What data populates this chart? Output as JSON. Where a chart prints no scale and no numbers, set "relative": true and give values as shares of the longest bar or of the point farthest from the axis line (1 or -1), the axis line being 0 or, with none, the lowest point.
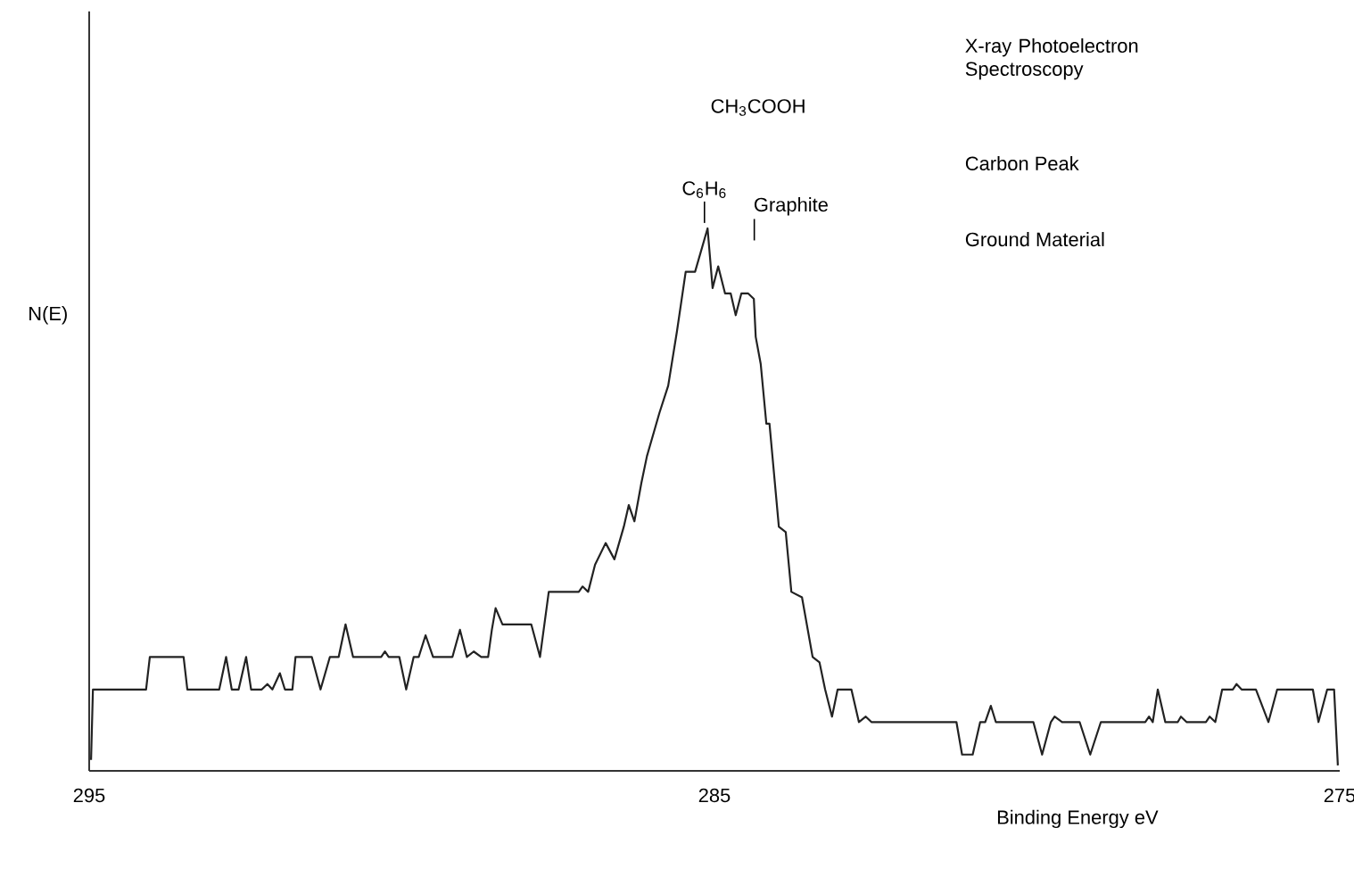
{
  "chart_data": {
    "type": "line",
    "title": "X-ray Photoelectron Spectroscopy",
    "subtitle": "Carbon Peak",
    "xlabel": "Binding Energy  eV",
    "ylabel": "N(E)",
    "relative": true,
    "xlim": [
      295,
      275
    ],
    "xticks": [
      295,
      285,
      275
    ],
    "x": [
      294.97,
      294.94,
      294.09,
      294.03,
      293.49,
      293.43,
      292.92,
      292.81,
      292.72,
      292.61,
      292.49,
      292.41,
      292.24,
      292.15,
      292.07,
      291.95,
      291.87,
      291.75,
      291.7,
      291.44,
      291.3,
      291.15,
      291.01,
      290.9,
      290.78,
      290.33,
      290.27,
      290.21,
      290.04,
      289.93,
      289.81,
      289.73,
      289.62,
      289.5,
      289.19,
      289.07,
      288.96,
      288.85,
      288.73,
      288.62,
      288.56,
      288.5,
      288.39,
      287.93,
      287.79,
      287.65,
      287.17,
      287.11,
      287.02,
      286.91,
      286.74,
      286.6,
      286.45,
      286.37,
      286.28,
      286.17,
      286.08,
      285.88,
      285.74,
      285.6,
      285.46,
      285.31,
      285.11,
      285.03,
      284.94,
      284.83,
      284.74,
      284.66,
      284.57,
      284.46,
      284.37,
      284.34,
      284.26,
      284.17,
      284.12,
      283.97,
      283.86,
      283.77,
      283.6,
      283.43,
      283.32,
      283.23,
      283.12,
      283.03,
      282.81,
      282.69,
      282.58,
      282.49,
      281.13,
      281.04,
      280.87,
      280.75,
      280.67,
      280.58,
      280.5,
      279.9,
      279.76,
      279.62,
      279.56,
      279.44,
      279.16,
      278.99,
      278.82,
      278.11,
      278.05,
      277.99,
      277.91,
      277.79,
      277.59,
      277.54,
      277.45,
      277.14,
      277.08,
      276.99,
      276.88,
      276.71,
      276.65,
      276.57,
      276.34,
      276.14,
      276.0,
      275.43,
      275.34,
      275.2,
      275.09,
      275.03
    ],
    "series": [
      {
        "color": "#222222",
        "values": [
          0.02,
          0.15,
          0.15,
          0.21,
          0.21,
          0.15,
          0.15,
          0.21,
          0.15,
          0.15,
          0.21,
          0.15,
          0.15,
          0.16,
          0.15,
          0.18,
          0.15,
          0.15,
          0.21,
          0.21,
          0.15,
          0.21,
          0.21,
          0.27,
          0.21,
          0.21,
          0.22,
          0.21,
          0.21,
          0.15,
          0.21,
          0.21,
          0.25,
          0.21,
          0.21,
          0.26,
          0.21,
          0.22,
          0.21,
          0.21,
          0.26,
          0.3,
          0.27,
          0.27,
          0.21,
          0.33,
          0.33,
          0.34,
          0.33,
          0.38,
          0.42,
          0.39,
          0.45,
          0.49,
          0.46,
          0.53,
          0.58,
          0.66,
          0.71,
          0.81,
          0.92,
          0.92,
          1.0,
          0.89,
          0.93,
          0.88,
          0.88,
          0.84,
          0.88,
          0.88,
          0.87,
          0.8,
          0.75,
          0.64,
          0.64,
          0.45,
          0.44,
          0.33,
          0.32,
          0.21,
          0.2,
          0.15,
          0.1,
          0.15,
          0.15,
          0.09,
          0.1,
          0.09,
          0.09,
          0.03,
          0.03,
          0.09,
          0.09,
          0.12,
          0.09,
          0.09,
          0.03,
          0.09,
          0.1,
          0.09,
          0.09,
          0.03,
          0.09,
          0.09,
          0.1,
          0.09,
          0.15,
          0.09,
          0.09,
          0.1,
          0.09,
          0.09,
          0.1,
          0.09,
          0.15,
          0.15,
          0.16,
          0.15,
          0.15,
          0.09,
          0.15,
          0.15,
          0.09,
          0.15,
          0.15,
          0.01
        ]
      }
    ],
    "annotations": [
      "C$_{6}$H$_{6}$",
      "CH$_{3}$COOH",
      "Graphite",
      "Ground Material"
    ]
  }
}
